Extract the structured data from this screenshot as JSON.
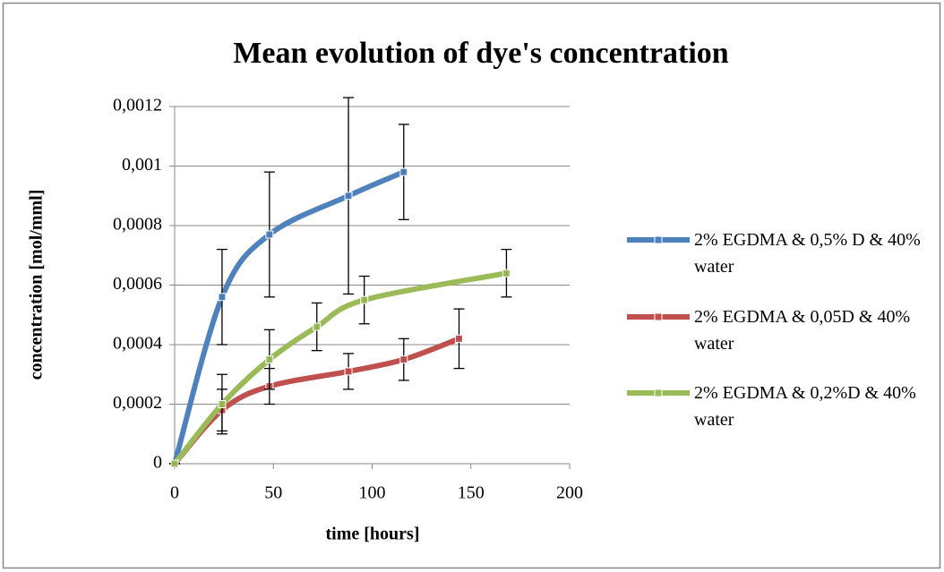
{
  "chart_data": {
    "type": "line",
    "title": "Mean evolution of dye's concentration",
    "x_label": "time [hours]",
    "y_label": "concentration [mol/mml]",
    "xlim": [
      0,
      200
    ],
    "xticks": [
      0,
      50,
      100,
      150,
      200
    ],
    "ylim": [
      0,
      0.0012
    ],
    "yticks": [
      0,
      {
        "value": 0.0002,
        "label": "0,0002"
      },
      {
        "value": 0.0004,
        "label": "0,0004"
      },
      {
        "value": 0.0006,
        "label": "0,0006"
      },
      {
        "value": 0.0008,
        "label": "0,0008"
      },
      {
        "value": 0.001,
        "label": "0,001"
      },
      {
        "value": 0.0012,
        "label": "0,0012"
      }
    ],
    "grid": true,
    "legend": "right",
    "smooth": true,
    "series": [
      {
        "name": "2% EGDMA & 0,5% D & 40% water",
        "color": "#4f81bd",
        "x": [
          0,
          24,
          48,
          88,
          116
        ],
        "values": [
          0,
          0.00056,
          0.00077,
          0.0009,
          0.00098
        ],
        "errors": [
          0,
          0.00016,
          0.00021,
          0.00033,
          0.00016
        ]
      },
      {
        "name": "2% EGDMA & 0,05D & 40% water",
        "color": "#c0504d",
        "x": [
          0,
          24,
          48,
          88,
          116,
          144
        ],
        "values": [
          0,
          0.00018,
          0.00026,
          0.00031,
          0.00035,
          0.00042
        ],
        "errors": [
          0,
          7e-05,
          6e-05,
          6e-05,
          7e-05,
          0.0001
        ]
      },
      {
        "name": "2% EGDMA & 0,2%D & 40% water",
        "color": "#9bbb59",
        "x": [
          0,
          24,
          48,
          72,
          96,
          168
        ],
        "values": [
          0,
          0.0002,
          0.00035,
          0.00046,
          0.00055,
          0.00064
        ],
        "errors": [
          0,
          0.0001,
          0.0001,
          8e-05,
          8e-05,
          8e-05
        ]
      }
    ]
  }
}
